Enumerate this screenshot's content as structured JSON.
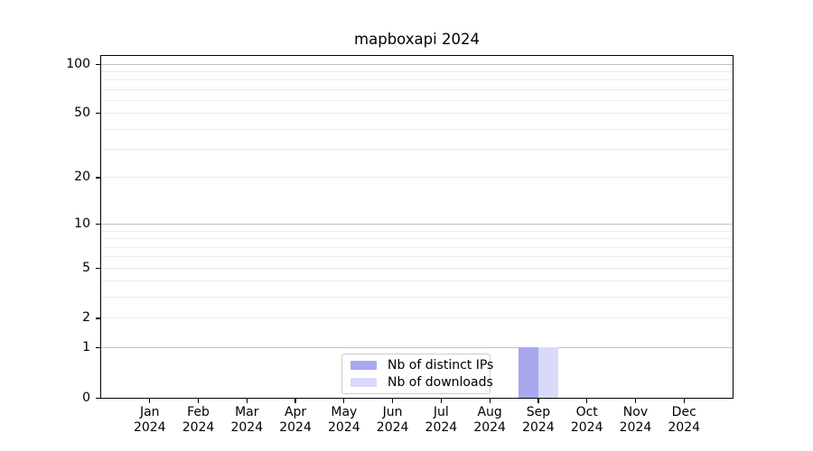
{
  "figure": {
    "title": "mapboxapi 2024"
  },
  "legend": {
    "items": [
      {
        "label": "Nb of distinct IPs",
        "color": "#a8a8f0"
      },
      {
        "label": "Nb of downloads",
        "color": "#d9d9fa"
      }
    ]
  },
  "colors": {
    "axis": "#000000",
    "major_grid": "#c3c3c3",
    "minor_grid": "#ececec",
    "legend_border": "#cccccc",
    "text": "#000000"
  },
  "chart_data": {
    "type": "bar",
    "title": "mapboxapi 2024",
    "categories": [
      "Jan 2024",
      "Feb 2024",
      "Mar 2024",
      "Apr 2024",
      "May 2024",
      "Jun 2024",
      "Jul 2024",
      "Aug 2024",
      "Sep 2024",
      "Oct 2024",
      "Nov 2024",
      "Dec 2024"
    ],
    "series": [
      {
        "name": "Nb of distinct IPs",
        "color": "#a8a8f0",
        "values": [
          0,
          0,
          0,
          0,
          0,
          0,
          0,
          0,
          1,
          0,
          0,
          0
        ]
      },
      {
        "name": "Nb of downloads",
        "color": "#d9d9fa",
        "values": [
          0,
          0,
          0,
          0,
          0,
          0,
          0,
          0,
          1,
          0,
          0,
          0
        ]
      }
    ],
    "xlabel": "",
    "ylabel": "",
    "yscale": "log1p",
    "ylim": [
      0,
      112
    ],
    "y_ticks": [
      100,
      50,
      20,
      10,
      5,
      2,
      1,
      0
    ],
    "major_gridlines": [
      1,
      10,
      100
    ],
    "minor_gridlines": [
      2,
      3,
      4,
      5,
      6,
      7,
      8,
      9,
      20,
      30,
      40,
      50,
      60,
      70,
      80,
      90
    ],
    "grid": "horizontal",
    "legend_position": "lower center"
  }
}
